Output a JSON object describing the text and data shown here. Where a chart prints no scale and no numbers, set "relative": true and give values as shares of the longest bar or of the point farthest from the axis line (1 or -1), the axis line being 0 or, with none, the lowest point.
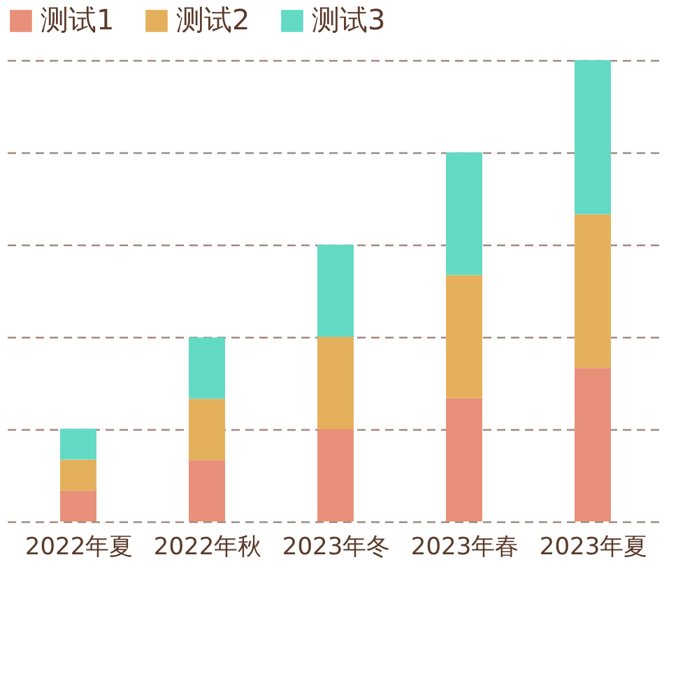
{
  "chart_data": {
    "type": "bar",
    "stacked": true,
    "relative": true,
    "categories": [
      "2022年夏",
      "2022年秋",
      "2023年冬",
      "2023年春",
      "2023年夏"
    ],
    "series": [
      {
        "name": "测试1",
        "color": "#e8907a",
        "values": [
          0.067,
          0.133,
          0.2,
          0.267,
          0.333
        ]
      },
      {
        "name": "测试2",
        "color": "#e5b05c",
        "values": [
          0.067,
          0.133,
          0.2,
          0.267,
          0.333
        ]
      },
      {
        "name": "测试3",
        "color": "#63dac4",
        "values": [
          0.067,
          0.133,
          0.2,
          0.266,
          0.334
        ]
      }
    ],
    "grid": "y",
    "legend": "top"
  }
}
